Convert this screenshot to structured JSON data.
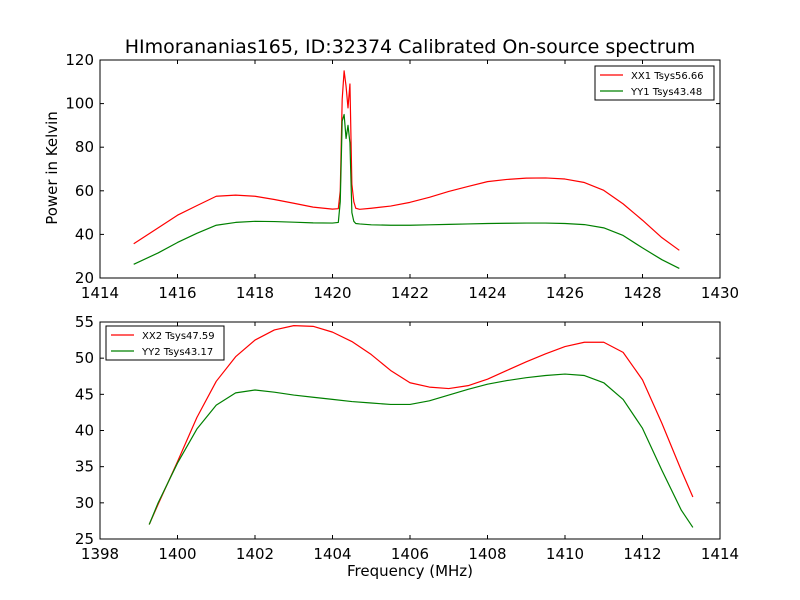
{
  "figure": {
    "title": "HImorananias165, ID:32374 Calibrated On-source spectrum",
    "ylabel": "Power in Kelvin",
    "xlabel": "Frequency (MHz)"
  },
  "colors": {
    "xx": "#ff0000",
    "yy": "#008000"
  },
  "chart_data": [
    {
      "type": "line",
      "title": "HImorananias165, ID:32374 Calibrated On-source spectrum",
      "xlabel": "",
      "ylabel": "Power in Kelvin",
      "xlim": [
        1414,
        1430
      ],
      "ylim": [
        20,
        120
      ],
      "xticks": [
        "1414",
        "1416",
        "1418",
        "1420",
        "1422",
        "1424",
        "1426",
        "1428",
        "1430"
      ],
      "yticks": [
        "20",
        "40",
        "60",
        "80",
        "100",
        "120"
      ],
      "grid": false,
      "legend": "top-right",
      "series": [
        {
          "name": "XX1 Tsys56.66",
          "color": "#ff0000",
          "x": [
            1414.87,
            1415.5,
            1416.0,
            1416.5,
            1417.0,
            1417.5,
            1418.0,
            1418.5,
            1419.0,
            1419.5,
            1420.0,
            1420.15,
            1420.2,
            1420.25,
            1420.3,
            1420.35,
            1420.4,
            1420.45,
            1420.5,
            1420.55,
            1420.6,
            1420.7,
            1421.0,
            1421.5,
            1422.0,
            1422.5,
            1423.0,
            1423.5,
            1424.0,
            1424.5,
            1425.0,
            1425.5,
            1426.0,
            1426.5,
            1427.0,
            1427.5,
            1428.0,
            1428.5,
            1428.95
          ],
          "y": [
            35.7,
            43.0,
            48.8,
            53.2,
            57.5,
            58.0,
            57.5,
            56.0,
            54.3,
            52.5,
            51.6,
            51.8,
            60.0,
            102.0,
            115.0,
            108.0,
            98.0,
            109.0,
            63.0,
            55.0,
            52.0,
            51.5,
            52.0,
            53.0,
            54.7,
            57.0,
            59.7,
            62.0,
            64.2,
            65.2,
            65.8,
            65.9,
            65.4,
            63.8,
            60.2,
            54.0,
            46.5,
            38.5,
            32.7
          ]
        },
        {
          "name": "YY1 Tsys43.48",
          "color": "#008000",
          "x": [
            1414.87,
            1415.5,
            1416.0,
            1416.5,
            1417.0,
            1417.5,
            1418.0,
            1418.5,
            1419.0,
            1419.5,
            1420.0,
            1420.15,
            1420.2,
            1420.25,
            1420.3,
            1420.35,
            1420.4,
            1420.45,
            1420.5,
            1420.55,
            1420.6,
            1420.7,
            1421.0,
            1421.5,
            1422.0,
            1422.5,
            1423.0,
            1423.5,
            1424.0,
            1424.5,
            1425.0,
            1425.5,
            1426.0,
            1426.5,
            1427.0,
            1427.5,
            1428.0,
            1428.5,
            1428.95
          ],
          "y": [
            26.3,
            31.5,
            36.3,
            40.5,
            44.2,
            45.5,
            46.0,
            45.9,
            45.6,
            45.3,
            45.2,
            45.5,
            55.0,
            92.0,
            95.0,
            84.0,
            90.0,
            82.0,
            50.0,
            46.0,
            45.0,
            44.8,
            44.4,
            44.2,
            44.2,
            44.4,
            44.6,
            44.8,
            45.0,
            45.1,
            45.2,
            45.2,
            45.0,
            44.5,
            43.0,
            39.5,
            33.8,
            28.4,
            24.4
          ]
        }
      ]
    },
    {
      "type": "line",
      "title": "",
      "xlabel": "Frequency (MHz)",
      "ylabel": "",
      "xlim": [
        1398,
        1414
      ],
      "ylim": [
        25,
        55
      ],
      "xticks": [
        "1398",
        "1400",
        "1402",
        "1404",
        "1406",
        "1408",
        "1410",
        "1412",
        "1414"
      ],
      "yticks": [
        "25",
        "30",
        "35",
        "40",
        "45",
        "50",
        "55"
      ],
      "grid": false,
      "legend": "top-left",
      "series": [
        {
          "name": "XX2 Tsys47.59",
          "color": "#ff0000",
          "x": [
            1399.27,
            1399.5,
            1400.0,
            1400.5,
            1401.0,
            1401.5,
            1402.0,
            1402.5,
            1403.0,
            1403.5,
            1404.0,
            1404.5,
            1405.0,
            1405.5,
            1406.0,
            1406.5,
            1407.0,
            1407.5,
            1408.0,
            1408.5,
            1409.0,
            1409.5,
            1410.0,
            1410.5,
            1411.0,
            1411.5,
            1412.0,
            1412.5,
            1413.0,
            1413.3
          ],
          "y": [
            27.0,
            29.8,
            35.7,
            41.8,
            46.8,
            50.2,
            52.5,
            53.9,
            54.5,
            54.4,
            53.6,
            52.3,
            50.5,
            48.3,
            46.6,
            46.0,
            45.8,
            46.2,
            47.1,
            48.3,
            49.5,
            50.6,
            51.6,
            52.2,
            52.2,
            50.8,
            47.0,
            41.0,
            34.5,
            30.8
          ]
        },
        {
          "name": "YY2 Tsys43.17",
          "color": "#008000",
          "x": [
            1399.27,
            1399.5,
            1400.0,
            1400.5,
            1401.0,
            1401.5,
            1402.0,
            1402.5,
            1403.0,
            1403.5,
            1404.0,
            1404.5,
            1405.0,
            1405.5,
            1406.0,
            1406.5,
            1407.0,
            1407.5,
            1408.0,
            1408.5,
            1409.0,
            1409.5,
            1410.0,
            1410.5,
            1411.0,
            1411.5,
            1412.0,
            1412.5,
            1413.0,
            1413.3
          ],
          "y": [
            27.0,
            30.0,
            35.5,
            40.2,
            43.5,
            45.2,
            45.6,
            45.3,
            44.9,
            44.6,
            44.3,
            44.0,
            43.8,
            43.6,
            43.6,
            44.1,
            44.9,
            45.7,
            46.4,
            46.9,
            47.3,
            47.6,
            47.8,
            47.6,
            46.6,
            44.3,
            40.3,
            34.5,
            29.0,
            26.6
          ]
        }
      ]
    }
  ]
}
